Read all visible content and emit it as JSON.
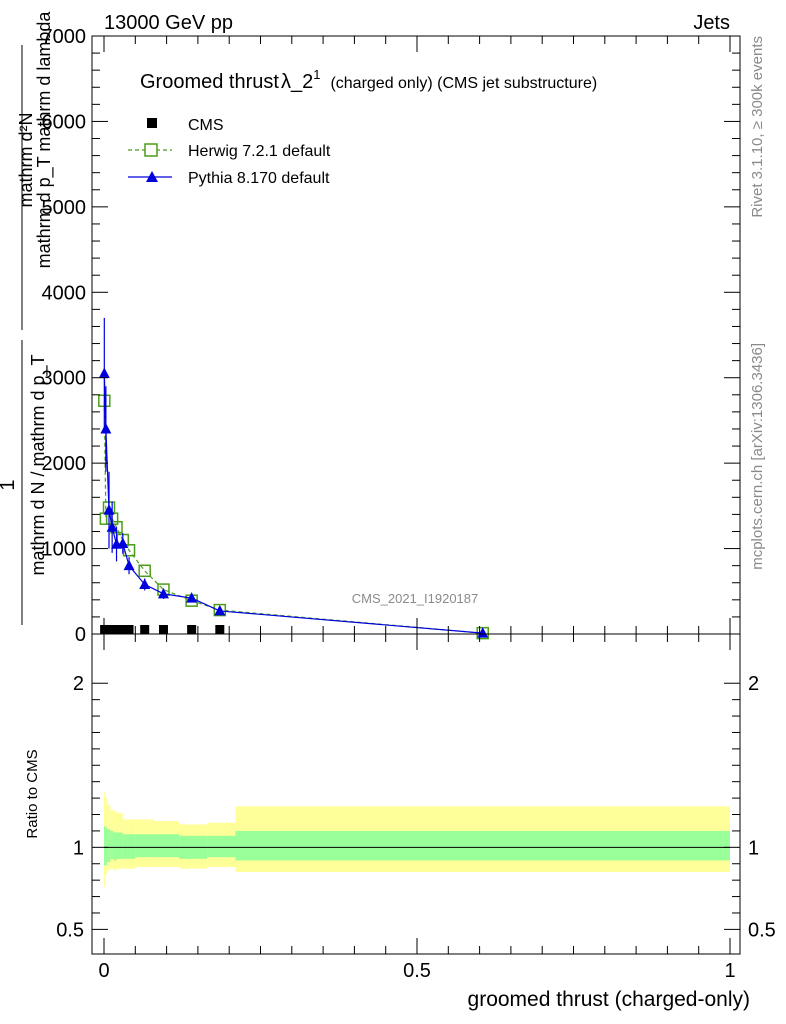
{
  "header": {
    "left": "13000 GeV pp",
    "right": "Jets"
  },
  "side_text": {
    "rivet": "Rivet 3.1.10, ≥ 300k events",
    "mcplots": "mcplots.cern.ch [arXiv:1306.3436]"
  },
  "chart_data": [
    {
      "type": "line",
      "panel": "main",
      "title_main": "Groomed thrust",
      "title_lambda": "λ_2",
      "title_sup": "1",
      "title_rest": "(charged only) (CMS jet substructure)",
      "ylabel": "1 / mathrm d N / mathrm d p_T mathrm d^2 N / mathrm d p_T mathrm d lambda",
      "ylabel_parts": {
        "one": "1",
        "numerator": "mathrm d²N",
        "numerator_sub": "mathrm d p_T mathrm d lambda",
        "denominator": "mathrm d N / mathrm d p_T"
      },
      "xlim": [
        0,
        1
      ],
      "ylim": [
        0,
        7000
      ],
      "yticks": [
        0,
        1000,
        2000,
        3000,
        4000,
        5000,
        6000,
        7000
      ],
      "ytick_labels": [
        "0",
        "1000",
        "2000",
        "3000",
        "4000",
        "5000",
        "6000",
        "7000"
      ],
      "watermark": "CMS_2021_I1920187",
      "legend": {
        "position": "top-left",
        "entries": [
          "CMS",
          "Herwig 7.2.1 default",
          "Pythia 8.170 default"
        ]
      },
      "series": [
        {
          "name": "CMS",
          "color": "#000000",
          "marker": "square-filled",
          "x": [
            0.001,
            0.005,
            0.01,
            0.015,
            0.02,
            0.03,
            0.04,
            0.065,
            0.095,
            0.14,
            0.185
          ],
          "y": [
            0,
            0,
            0,
            0,
            0,
            0,
            0,
            0,
            0,
            0,
            0
          ]
        },
        {
          "name": "Herwig 7.2.1 default",
          "color": "#4a9e1a",
          "marker": "square-open",
          "line": "dashed",
          "x": [
            0.0005,
            0.003,
            0.008,
            0.013,
            0.02,
            0.03,
            0.04,
            0.065,
            0.095,
            0.14,
            0.185,
            0.605
          ],
          "y": [
            2730,
            1350,
            1480,
            1350,
            1250,
            1100,
            980,
            740,
            520,
            390,
            280,
            10
          ]
        },
        {
          "name": "Pythia 8.170 default",
          "color": "#0000dd",
          "marker": "triangle-filled",
          "line": "solid",
          "x": [
            0.0005,
            0.003,
            0.008,
            0.013,
            0.02,
            0.03,
            0.04,
            0.065,
            0.095,
            0.14,
            0.185,
            0.605
          ],
          "y": [
            3050,
            2400,
            1450,
            1250,
            1050,
            1060,
            800,
            580,
            470,
            420,
            270,
            10
          ],
          "err": [
            650,
            500,
            450,
            300,
            200,
            120,
            100,
            70,
            60,
            50,
            30,
            5
          ]
        }
      ]
    },
    {
      "type": "area",
      "panel": "ratio",
      "ylabel": "Ratio to CMS",
      "xlabel": "groomed thrust (charged-only)",
      "xlim": [
        0,
        1
      ],
      "ylim": [
        0.35,
        2.3
      ],
      "xticks": [
        0,
        0.5,
        1
      ],
      "xtick_labels": [
        "0",
        "0.5",
        "1"
      ],
      "yticks": [
        0.5,
        1,
        2
      ],
      "ytick_labels": [
        "0.5",
        "1",
        "2"
      ],
      "reference_line": 1,
      "bands": {
        "bin_edges": [
          0,
          0.002,
          0.005,
          0.01,
          0.015,
          0.02,
          0.03,
          0.05,
          0.08,
          0.12,
          0.165,
          0.21,
          1.0
        ],
        "yellow_lo": [
          0.76,
          0.84,
          0.86,
          0.87,
          0.86,
          0.87,
          0.87,
          0.88,
          0.88,
          0.87,
          0.88,
          0.85
        ],
        "yellow_hi": [
          1.34,
          1.3,
          1.26,
          1.23,
          1.22,
          1.21,
          1.17,
          1.17,
          1.16,
          1.14,
          1.15,
          1.25
        ],
        "green_lo": [
          0.89,
          0.89,
          0.91,
          0.93,
          0.92,
          0.93,
          0.93,
          0.94,
          0.94,
          0.93,
          0.94,
          0.92
        ],
        "green_hi": [
          1.13,
          1.12,
          1.11,
          1.1,
          1.09,
          1.09,
          1.08,
          1.08,
          1.08,
          1.07,
          1.07,
          1.1
        ],
        "yellow_color": "#ffff99",
        "green_color": "#99ff99"
      }
    }
  ]
}
